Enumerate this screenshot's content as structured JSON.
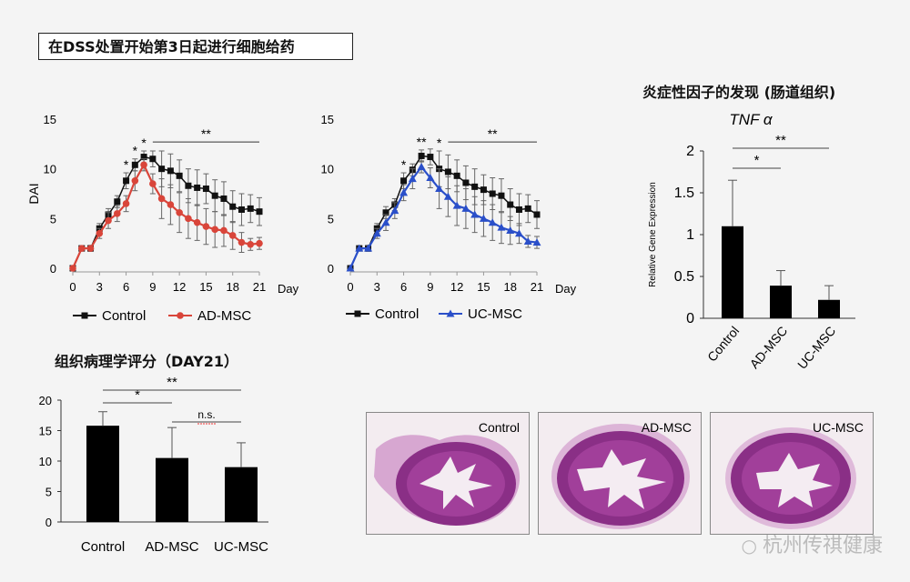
{
  "header": {
    "title": "在DSS处置开始第3日起进行细胞给药"
  },
  "section_titles": {
    "cytokine": "炎症性因子的发现 (肠道组织)",
    "histology": "组织病理学评分（DAY21）"
  },
  "watermark": "杭州传祺健康",
  "images": [
    {
      "label": "Control"
    },
    {
      "label": "AD-MSC"
    },
    {
      "label": "UC-MSC"
    }
  ],
  "colors": {
    "control": "#111111",
    "ad": "#d9453a",
    "uc": "#2a4fc9",
    "tissue": "#8a2f86",
    "lumen": "#f4ecf2"
  },
  "chart_data": [
    {
      "type": "line",
      "ylabel": "DAI",
      "xlabel": "Day",
      "ylim": [
        0,
        15
      ],
      "yticks": [
        "0",
        "5",
        "10",
        "15"
      ],
      "xticks": [
        "0",
        "3",
        "6",
        "9",
        "12",
        "15",
        "18",
        "21"
      ],
      "x": [
        0,
        1,
        2,
        3,
        4,
        5,
        6,
        7,
        8,
        9,
        10,
        11,
        12,
        13,
        14,
        15,
        16,
        17,
        18,
        19,
        20,
        21
      ],
      "series": [
        {
          "name": "Control",
          "color": "#111111",
          "marker": "square",
          "values": [
            0,
            2,
            2,
            4,
            5.4,
            6.7,
            8.8,
            10.4,
            11.2,
            11,
            10,
            9.8,
            9.3,
            8.3,
            8.1,
            8,
            7.3,
            7,
            6.2,
            5.9,
            6,
            5.7
          ],
          "errors": [
            0,
            0,
            0.3,
            0.5,
            0.6,
            0.6,
            0.8,
            0.6,
            0.6,
            0.8,
            1.8,
            1.7,
            1.6,
            1.7,
            1.8,
            1.5,
            1.6,
            1.7,
            1.6,
            1.6,
            1.4,
            1.4
          ]
        },
        {
          "name": "AD-MSC",
          "color": "#d9453a",
          "marker": "circle",
          "values": [
            0,
            2,
            2,
            3.5,
            4.8,
            5.5,
            6.5,
            8.8,
            10.4,
            8.5,
            7,
            6.4,
            5.6,
            5,
            4.6,
            4.2,
            3.9,
            3.8,
            3.3,
            2.6,
            2.4,
            2.5
          ],
          "errors": [
            0,
            0,
            0.3,
            0.5,
            0.8,
            0.8,
            0.8,
            1,
            0.6,
            1,
            2,
            2,
            2,
            2,
            1.8,
            1.8,
            1.8,
            1.6,
            1.4,
            1,
            0.6,
            0.6
          ]
        }
      ],
      "annotations": [
        {
          "x": 6,
          "text": "*"
        },
        {
          "x": 7,
          "text": "*"
        },
        {
          "x": 8,
          "text": "*"
        }
      ],
      "brackets": [
        {
          "x1": 9,
          "x2": 21,
          "text": "**"
        }
      ]
    },
    {
      "type": "line",
      "xlabel": "Day",
      "ylim": [
        0,
        15
      ],
      "yticks": [
        "0",
        "5",
        "10",
        "15"
      ],
      "xticks": [
        "0",
        "3",
        "6",
        "9",
        "12",
        "15",
        "18",
        "21"
      ],
      "x": [
        0,
        1,
        2,
        3,
        4,
        5,
        6,
        7,
        8,
        9,
        10,
        11,
        12,
        13,
        14,
        15,
        16,
        17,
        18,
        19,
        20,
        21
      ],
      "series": [
        {
          "name": "Control",
          "color": "#111111",
          "marker": "square",
          "values": [
            0,
            2,
            2,
            4,
            5.6,
            6.4,
            8.8,
            9.9,
            11.3,
            11.2,
            10,
            9.7,
            9.3,
            8.6,
            8.2,
            7.9,
            7.5,
            7.3,
            6.4,
            5.9,
            6,
            5.4
          ],
          "errors": [
            0,
            0,
            0.3,
            0.5,
            0.6,
            0.6,
            0.8,
            0.6,
            0.6,
            0.8,
            1.8,
            1.7,
            1.6,
            1.7,
            1.8,
            1.5,
            1.6,
            1.7,
            1.6,
            1.6,
            1.4,
            1.4
          ]
        },
        {
          "name": "UC-MSC",
          "color": "#2a4fc9",
          "marker": "triangle",
          "values": [
            0,
            2,
            2,
            3.5,
            4.6,
            5.8,
            7.6,
            9,
            10.2,
            9.1,
            8,
            7.2,
            6.3,
            6,
            5.4,
            5,
            4.6,
            4.1,
            3.8,
            3.5,
            2.7,
            2.6
          ],
          "errors": [
            0,
            0,
            0.3,
            0.5,
            0.8,
            0.8,
            0.8,
            1,
            0.6,
            1,
            2,
            2,
            2,
            2,
            1.8,
            1.8,
            1.8,
            1.6,
            1.4,
            1,
            0.6,
            0.6
          ]
        }
      ],
      "annotations": [
        {
          "x": 6,
          "text": "*"
        },
        {
          "x": 8,
          "text": "**"
        },
        {
          "x": 10,
          "text": "*"
        }
      ],
      "brackets": [
        {
          "x1": 11,
          "x2": 21,
          "text": "**"
        }
      ]
    },
    {
      "type": "bar",
      "title": "TNF α",
      "ylabel": "Relative Gene Expression",
      "ylim": [
        0,
        2
      ],
      "yticks": [
        "0",
        "0.5",
        "1",
        "1.5",
        "2"
      ],
      "categories": [
        "Control",
        "AD-MSC",
        "UC-MSC"
      ],
      "values": [
        1.1,
        0.39,
        0.22
      ],
      "errors": [
        0.55,
        0.18,
        0.17
      ],
      "brackets": [
        {
          "from": 0,
          "to": 1,
          "text": "*"
        },
        {
          "from": 0,
          "to": 2,
          "text": "**"
        }
      ]
    },
    {
      "type": "bar",
      "ylim": [
        0,
        20
      ],
      "yticks": [
        "0",
        "5",
        "10",
        "15",
        "20"
      ],
      "categories": [
        "Control",
        "AD-MSC",
        "UC-MSC"
      ],
      "values": [
        15.8,
        10.5,
        9
      ],
      "errors": [
        2.3,
        5,
        4
      ],
      "brackets": [
        {
          "from": 0,
          "to": 1,
          "text": "*"
        },
        {
          "from": 0,
          "to": 2,
          "text": "**"
        },
        {
          "from": 1,
          "to": 2,
          "text": "n.s."
        }
      ]
    }
  ]
}
